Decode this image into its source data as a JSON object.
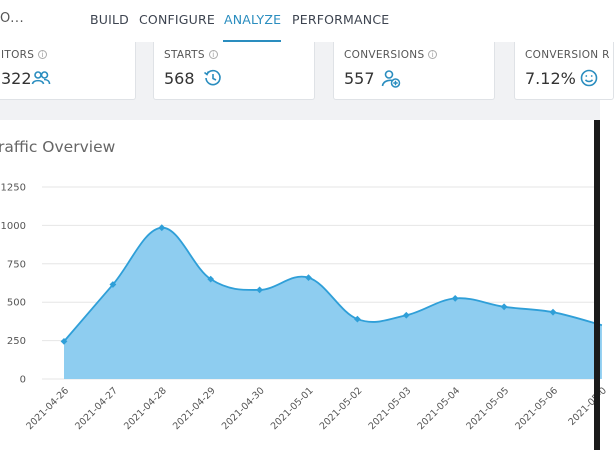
{
  "nav": {
    "crumb": "O...",
    "tabs": [
      {
        "label": "BUILD",
        "active": false
      },
      {
        "label": "CONFIGURE",
        "active": false
      },
      {
        "label": "ANALYZE",
        "active": true
      },
      {
        "label": "PERFORMANCE",
        "active": false
      }
    ]
  },
  "stats": [
    {
      "label": "ITORS",
      "value": "322",
      "icon": "users-icon"
    },
    {
      "label": "STARTS",
      "value": "568",
      "icon": "history-icon"
    },
    {
      "label": "CONVERSIONS",
      "value": "557",
      "icon": "add-user-icon"
    },
    {
      "label": "CONVERSION R",
      "value": "7.12%",
      "icon": "smile-icon"
    }
  ],
  "colors": {
    "accent": "#2a8dbf",
    "area_fill": "#8ecdf0",
    "area_line": "#2f9fd8"
  },
  "chart_data": {
    "type": "area",
    "title": "raffic Overview",
    "x": [
      "2021-04-26",
      "2021-04-27",
      "2021-04-28",
      "2021-04-29",
      "2021-04-30",
      "2021-05-01",
      "2021-05-02",
      "2021-05-03",
      "2021-05-04",
      "2021-05-05",
      "2021-05-06",
      "2021-05-0"
    ],
    "values": [
      245,
      615,
      985,
      650,
      580,
      660,
      390,
      415,
      525,
      470,
      435,
      350
    ],
    "yticks": [
      "0",
      "250",
      "500",
      "750",
      "1000",
      "1250"
    ],
    "ylim": [
      0,
      1250
    ],
    "grid": true
  }
}
